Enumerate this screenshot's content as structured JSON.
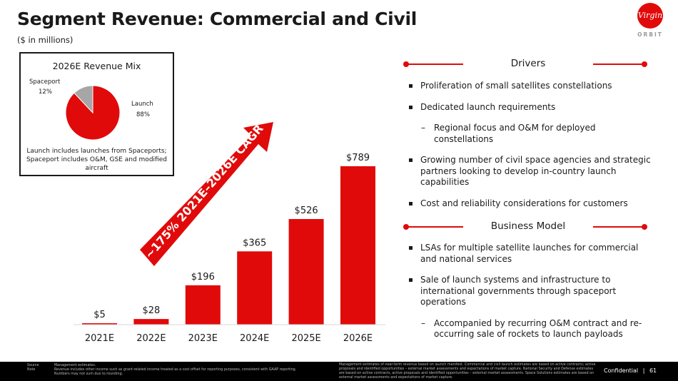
{
  "header": {
    "title": "Segment Revenue: Commercial and Civil",
    "subtitle": "($ in millions)"
  },
  "logo": {
    "wordmark": "Virgin",
    "sub": "ORBIT"
  },
  "revenue_mix": {
    "title": "2026E Revenue Mix",
    "slices": [
      {
        "label": "Launch",
        "pct_label": "88%",
        "value": 88,
        "color": "#e10a0a"
      },
      {
        "label": "Spaceport",
        "pct_label": "12%",
        "value": 12,
        "color": "#a6a6a6"
      }
    ],
    "note": "Launch includes launches from Spaceports; Spaceport includes O&M, GSE and modified aircraft"
  },
  "cagr_label": "~175% 2021E–2026E CAGR",
  "chart_data": [
    {
      "type": "bar",
      "categories": [
        "2021E",
        "2022E",
        "2023E",
        "2024E",
        "2025E",
        "2026E"
      ],
      "values": [
        5,
        28,
        196,
        365,
        526,
        789
      ],
      "data_labels": [
        "$5",
        "$28",
        "$196",
        "$365",
        "$526",
        "$789"
      ],
      "color": "#e10a0a",
      "ylim": [
        0,
        789
      ]
    },
    {
      "type": "pie",
      "categories": [
        "Launch",
        "Spaceport"
      ],
      "values": [
        88,
        12
      ],
      "title": "2026E Revenue Mix"
    }
  ],
  "drivers": {
    "heading": "Drivers",
    "items": [
      {
        "kind": "bullet",
        "text": "Proliferation of small satellites constellations"
      },
      {
        "kind": "bullet",
        "text": "Dedicated launch requirements"
      },
      {
        "kind": "sub",
        "text": "Regional focus and O&M for deployed constellations"
      },
      {
        "kind": "bullet",
        "text": "Growing number of civil space agencies and strategic partners looking to develop in-country launch capabilities"
      },
      {
        "kind": "bullet",
        "text": "Cost and reliability considerations for customers"
      }
    ]
  },
  "business_model": {
    "heading": "Business Model",
    "items": [
      {
        "kind": "bullet",
        "text": "LSAs for multiple satellite launches for commercial and national services"
      },
      {
        "kind": "bullet",
        "text": "Sale of launch systems and infrastructure to international governments through spaceport operations"
      },
      {
        "kind": "sub",
        "text": "Accompanied by recurring O&M contract and re-occurring sale of rockets to launch payloads"
      }
    ]
  },
  "footer": {
    "source_label": "Source",
    "note_label": "Note",
    "source_text": "Management estimates.",
    "note_text": "Revenue includes other income such as grant-related income treated as a cost offset for reporting purposes, consistent with GAAP reporting. Numbers may not sum due to rounding.",
    "mid_text": "Management estimates of near-term revenue based on launch manifest. Commercial and civil launch estimates are based on active contracts; active proposals and identified opportunities – external market assessments and expectations of market capture. National Security and Defense estimates are based on active contracts, active proposals and identified opportunities – external market assessments. Space Solutions estimates are based on external market assessments and expectations of market capture.",
    "confidential": "Confidential",
    "page": "61"
  }
}
